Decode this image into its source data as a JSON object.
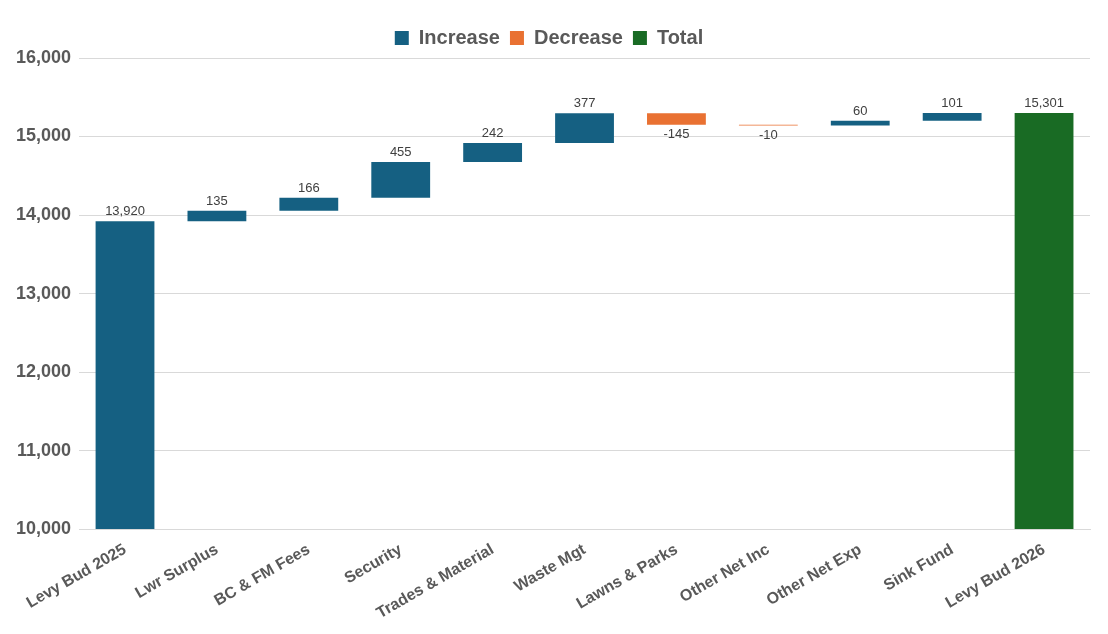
{
  "chart_data": {
    "type": "bar",
    "categories": [
      "Levy Bud 2025",
      "Lwr Surplus",
      "BC & FM Fees",
      "Security",
      "Trades & Material",
      "Waste Mgt",
      "Lawns & Parks",
      "Other Net Inc",
      "Other Net Exp",
      "Sink Fund",
      "Levy Bud 2026"
    ],
    "series": [
      {
        "name": "Increase",
        "color": "#156082",
        "base": [
          0,
          13920,
          14055,
          14221,
          14676,
          14918,
          null,
          null,
          15140,
          15200,
          null
        ],
        "values": [
          13920,
          135,
          166,
          455,
          242,
          377,
          null,
          null,
          60,
          101,
          null
        ],
        "value_labels": [
          "13,920",
          "135",
          "166",
          "455",
          "242",
          "377",
          null,
          null,
          "60",
          "101",
          null
        ]
      },
      {
        "name": "Decrease",
        "color": "#e97132",
        "base": [
          null,
          null,
          null,
          null,
          null,
          null,
          15295,
          15150,
          null,
          null,
          null
        ],
        "values": [
          null,
          null,
          null,
          null,
          null,
          null,
          -145,
          -10,
          null,
          null,
          null
        ],
        "value_labels": [
          null,
          null,
          null,
          null,
          null,
          null,
          "-145",
          "-10",
          null,
          null,
          null
        ]
      },
      {
        "name": "Total",
        "color": "#196b24",
        "base": [
          null,
          null,
          null,
          null,
          null,
          null,
          null,
          null,
          null,
          null,
          0
        ],
        "values": [
          null,
          null,
          null,
          null,
          null,
          null,
          null,
          null,
          null,
          null,
          15301
        ],
        "value_labels": [
          null,
          null,
          null,
          null,
          null,
          null,
          null,
          null,
          null,
          null,
          "15,301"
        ]
      }
    ],
    "ylim": [
      10000,
      16000
    ],
    "yticks": [
      {
        "value": 10000,
        "label": "10,000"
      },
      {
        "value": 11000,
        "label": "11,000"
      },
      {
        "value": 12000,
        "label": "12,000"
      },
      {
        "value": 13000,
        "label": "13,000"
      },
      {
        "value": 14000,
        "label": "14,000"
      },
      {
        "value": 15000,
        "label": "15,000"
      },
      {
        "value": 16000,
        "label": "16,000"
      }
    ],
    "grid": "y",
    "legend": "top"
  }
}
